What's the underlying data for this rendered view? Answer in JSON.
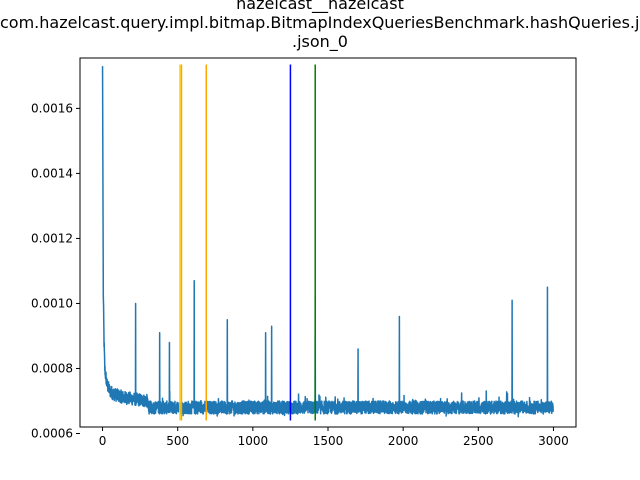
{
  "chart_data": {
    "type": "line",
    "title_lines": [
      "hazelcast__hazelcast",
      "com.hazelcast.query.impl.bitmap.BitmapIndexQueriesBenchmark.hashQueries.json",
      ".json_0"
    ],
    "xlabel": "",
    "ylabel": "",
    "xlim": [
      -150,
      3150
    ],
    "ylim": [
      0.00062,
      0.001755
    ],
    "x_ticks": [
      0,
      500,
      1000,
      1500,
      2000,
      2500,
      3000
    ],
    "x_tick_labels": [
      "0",
      "500",
      "1000",
      "1500",
      "2000",
      "2500",
      "3000"
    ],
    "y_ticks": [
      0.0006,
      0.0008,
      0.001,
      0.0012,
      0.0014,
      0.0016
    ],
    "y_tick_labels": [
      "0.0006",
      "0.0008",
      "0.0010",
      "0.0012",
      "0.0014",
      "0.0016"
    ],
    "grid": false,
    "series": [
      {
        "color": "#1f77b4",
        "n_points": 3000,
        "baseline": 0.00068,
        "noise": 2e-05,
        "early_values": [
          [
            0,
            0.00173
          ],
          [
            5,
            0.00103
          ],
          [
            10,
            0.00088
          ],
          [
            15,
            0.0008
          ],
          [
            20,
            0.00078
          ],
          [
            30,
            0.00075
          ],
          [
            50,
            0.00073
          ],
          [
            80,
            0.00072
          ],
          [
            150,
            0.00071
          ],
          [
            300,
            0.0007
          ]
        ],
        "spikes": [
          [
            220,
            0.001
          ],
          [
            380,
            0.00091
          ],
          [
            445,
            0.00088
          ],
          [
            610,
            0.00107
          ],
          [
            830,
            0.00095
          ],
          [
            1085,
            0.00091
          ],
          [
            1125,
            0.00093
          ],
          [
            1415,
            0.00102
          ],
          [
            1700,
            0.00086
          ],
          [
            1975,
            0.00096
          ],
          [
            2725,
            0.00101
          ],
          [
            2960,
            0.00105
          ]
        ]
      }
    ],
    "vlines": [
      {
        "x": 515,
        "color": "#ffd700",
        "ymin": 0.00064,
        "ymax": 0.001735
      },
      {
        "x": 525,
        "color": "#ffa500",
        "ymin": 0.00064,
        "ymax": 0.001735
      },
      {
        "x": 690,
        "color": "#ffa500",
        "ymin": 0.00064,
        "ymax": 0.001735
      },
      {
        "x": 1250,
        "color": "#0000ff",
        "ymin": 0.00064,
        "ymax": 0.001735
      },
      {
        "x": 1415,
        "color": "#008000",
        "ymin": 0.00064,
        "ymax": 0.001735
      }
    ]
  }
}
